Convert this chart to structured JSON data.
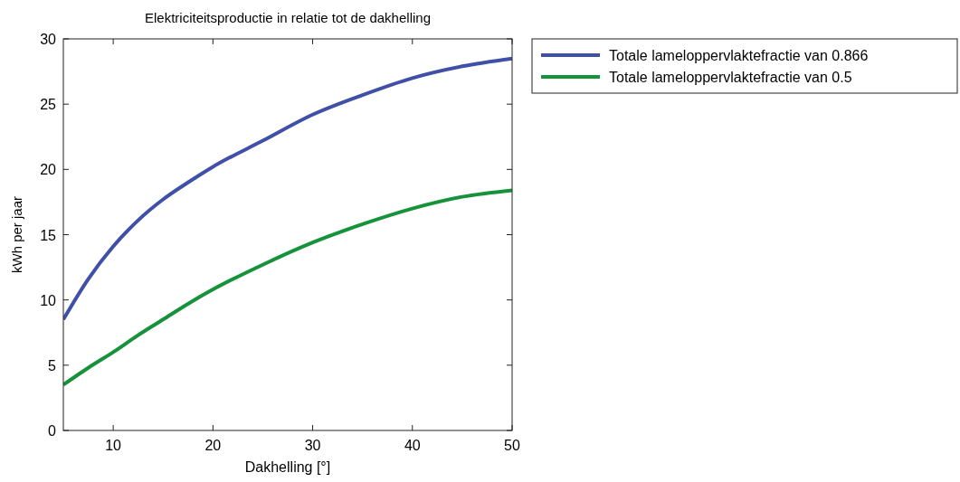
{
  "chart_data": {
    "type": "line",
    "title": "Elektriciteitsproductie in relatie tot de dakhelling",
    "xlabel": "Dakhelling [°]",
    "ylabel": "kWh per jaar",
    "x": [
      5,
      7.5,
      10,
      12.5,
      15,
      17.5,
      20,
      25,
      30,
      35,
      40,
      45,
      50
    ],
    "series": [
      {
        "name": "Totale lameloppervlaktefractie van 0.866",
        "color": "#4050a8",
        "values": [
          8.5,
          11.6,
          14.1,
          16.1,
          17.7,
          19.0,
          20.2,
          22.2,
          24.2,
          25.7,
          27.0,
          27.9,
          28.5
        ]
      },
      {
        "name": "Totale lameloppervlaktefractie van 0.5",
        "color": "#15923a",
        "values": [
          3.5,
          4.8,
          6.0,
          7.3,
          8.5,
          9.7,
          10.8,
          12.7,
          14.4,
          15.8,
          17.0,
          17.9,
          18.4
        ]
      }
    ],
    "xlim": [
      5,
      50
    ],
    "xticks": [
      10,
      20,
      30,
      40,
      50
    ],
    "ylim": [
      0,
      30
    ],
    "yticks": [
      0,
      5,
      10,
      15,
      20,
      25,
      30
    ],
    "grid": false,
    "legend": "top right",
    "line_style": "solid"
  }
}
